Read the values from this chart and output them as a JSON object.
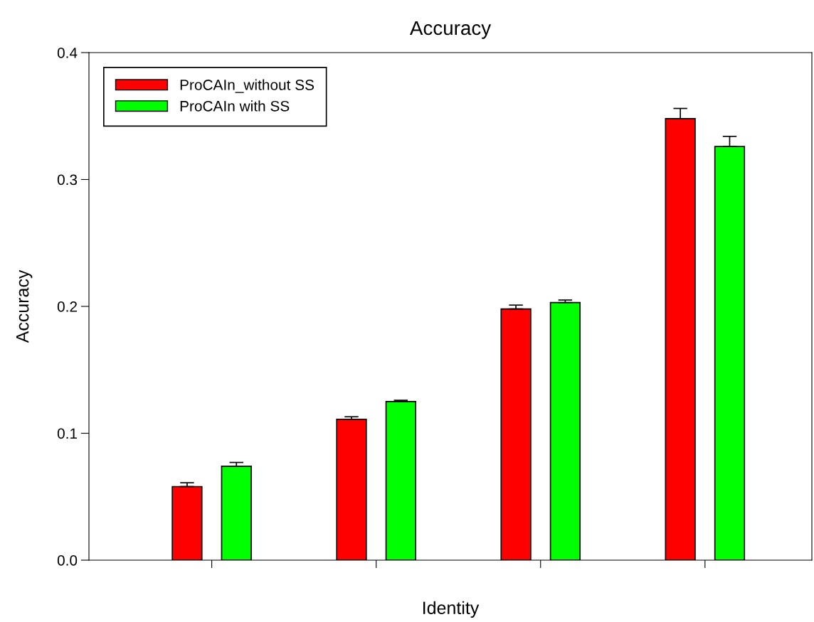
{
  "chart_data": {
    "type": "bar",
    "title": "Accuracy",
    "xlabel": "Identity",
    "ylabel": "Accuracy",
    "categories": [
      null,
      null,
      null,
      null
    ],
    "series": [
      {
        "name": "ProCAIn_without SS",
        "color": "#ff0000",
        "values": [
          0.058,
          0.111,
          0.198,
          0.348
        ],
        "errors": [
          [
            0.058,
            0.061
          ],
          [
            0.111,
            0.113
          ],
          [
            0.198,
            0.201
          ],
          [
            0.348,
            0.356
          ]
        ]
      },
      {
        "name": "ProCAIn with SS",
        "color": "#00ff00",
        "values": [
          0.074,
          0.125,
          0.203,
          0.326
        ],
        "errors": [
          [
            0.074,
            0.077
          ],
          [
            0.125,
            0.126
          ],
          [
            0.203,
            0.205
          ],
          [
            0.326,
            0.334
          ]
        ]
      }
    ],
    "ylim": [
      0,
      0.4
    ],
    "yticks": [
      {
        "value": 0,
        "label": "0.0"
      },
      0.1,
      0.2,
      0.3,
      0.4
    ],
    "grid": false,
    "legend": "top left"
  }
}
